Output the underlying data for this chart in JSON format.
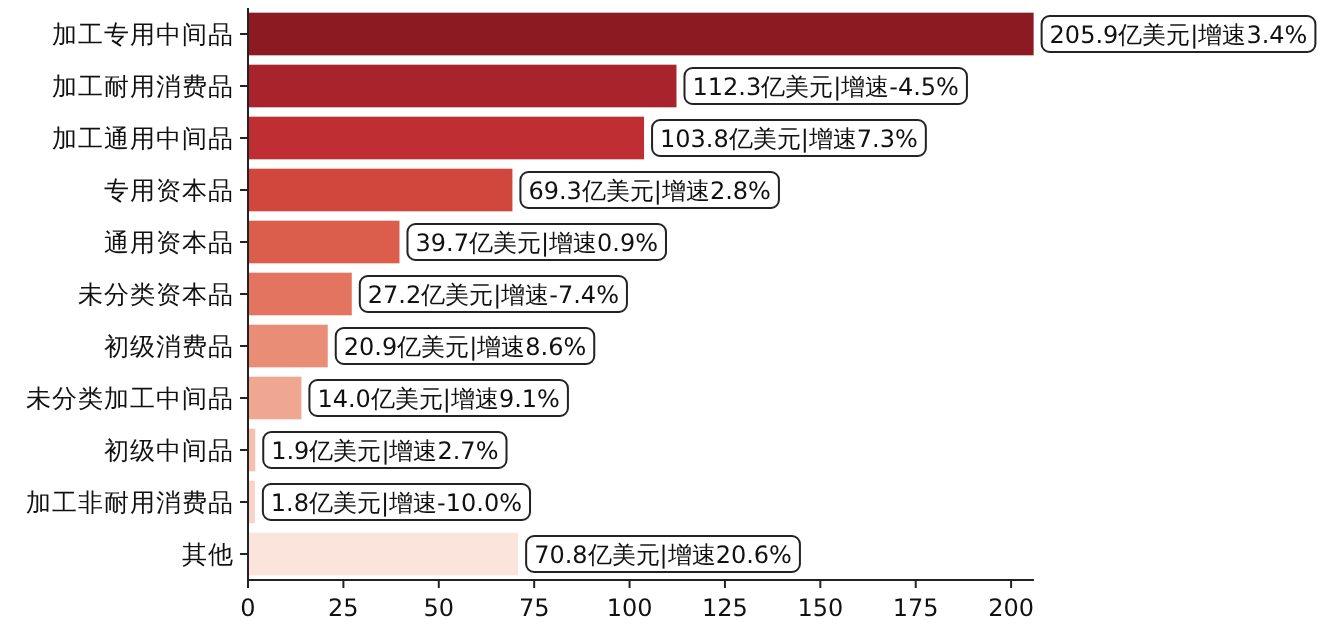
{
  "chart_data": {
    "type": "bar",
    "orientation": "horizontal",
    "categories": [
      "加工专用中间品",
      "加工耐用消费品",
      "加工通用中间品",
      "专用资本品",
      "通用资本品",
      "未分类资本品",
      "初级消费品",
      "未分类加工中间品",
      "初级中间品",
      "加工非耐用消费品",
      "其他"
    ],
    "values": [
      205.9,
      112.3,
      103.8,
      69.3,
      39.7,
      27.2,
      20.9,
      14.0,
      1.9,
      1.8,
      70.8
    ],
    "colors": [
      "#8b1a22",
      "#a8232b",
      "#bf2e32",
      "#d1473d",
      "#db5d4b",
      "#e37560",
      "#ea8d77",
      "#f0a792",
      "#f5c0ae",
      "#f8d3c6",
      "#fae4dc"
    ],
    "value_labels": [
      "205.9亿美元|增速3.4%",
      "112.3亿美元|增速-4.5%",
      "103.8亿美元|增速7.3%",
      "69.3亿美元|增速2.8%",
      "39.7亿美元|增速0.9%",
      "27.2亿美元|增速-7.4%",
      "20.9亿美元|增速8.6%",
      "14.0亿美元|增速9.1%",
      "1.9亿美元|增速2.7%",
      "1.8亿美元|增速-10.0%",
      "70.8亿美元|增速20.6%"
    ],
    "xlim": [
      0,
      206
    ],
    "xticks": [
      0,
      25,
      50,
      75,
      100,
      125,
      150,
      175,
      200
    ],
    "grid": false
  }
}
